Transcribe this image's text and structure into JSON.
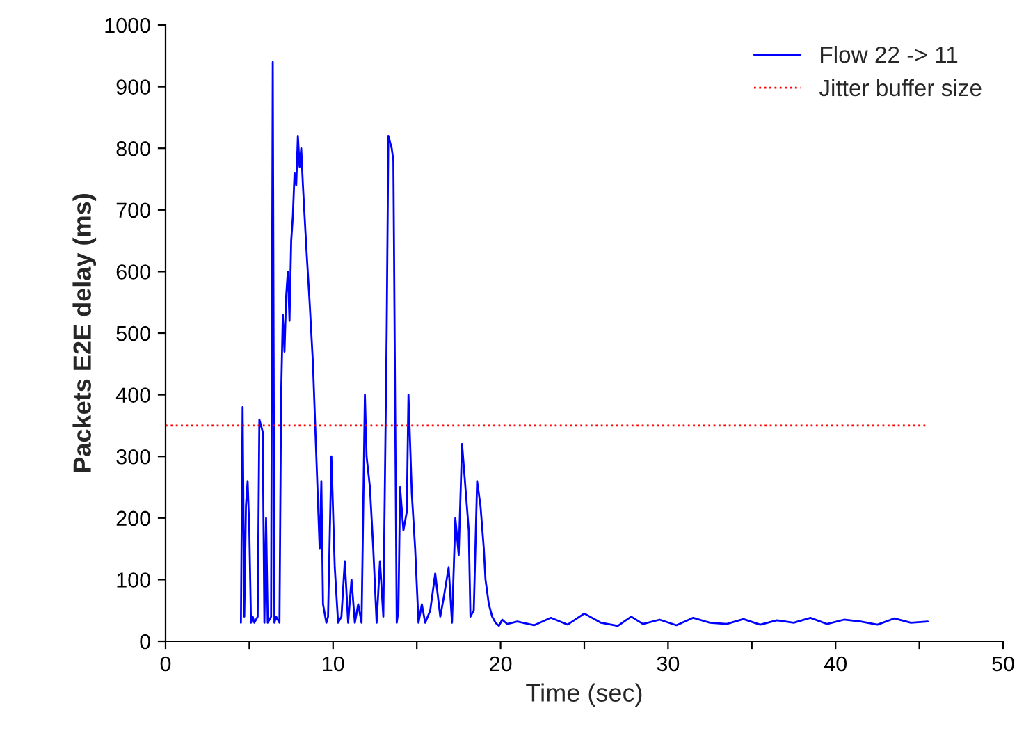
{
  "chart_data": {
    "type": "line",
    "xlabel": "Time (sec)",
    "ylabel": "Packets E2E delay (ms)",
    "xlim": [
      0,
      50
    ],
    "xticks": [
      0,
      {
        "value": 5,
        "label": null
      },
      10,
      {
        "value": 15,
        "label": null
      },
      20,
      {
        "value": 25,
        "label": null
      },
      30,
      {
        "value": 35,
        "label": null
      },
      40,
      {
        "value": 45,
        "label": null
      },
      50
    ],
    "ylim": [
      0,
      1000
    ],
    "yticks": [
      0,
      100,
      200,
      300,
      400,
      500,
      600,
      700,
      800,
      900,
      1000
    ],
    "grid": false,
    "legend": "top right",
    "marker": "none",
    "line_style": "solid",
    "series": [
      {
        "name": "Flow 22 -> 11",
        "color": "#0000ff",
        "x": [
          4.5,
          4.6,
          4.7,
          4.8,
          4.9,
          5.0,
          5.1,
          5.2,
          5.3,
          5.5,
          5.6,
          5.8,
          5.9,
          6.0,
          6.1,
          6.3,
          6.4,
          6.5,
          6.6,
          6.8,
          6.9,
          7.0,
          7.1,
          7.2,
          7.3,
          7.4,
          7.5,
          7.6,
          7.7,
          7.8,
          7.9,
          8.0,
          8.1,
          8.2,
          8.4,
          8.6,
          8.8,
          9.0,
          9.2,
          9.3,
          9.4,
          9.6,
          9.7,
          9.9,
          10.1,
          10.3,
          10.5,
          10.7,
          10.9,
          11.1,
          11.3,
          11.5,
          11.7,
          11.9,
          12.0,
          12.2,
          12.4,
          12.6,
          12.8,
          13.0,
          13.2,
          13.3,
          13.5,
          13.6,
          13.8,
          13.9,
          14.0,
          14.2,
          14.4,
          14.5,
          14.7,
          14.9,
          15.1,
          15.3,
          15.5,
          15.8,
          16.1,
          16.4,
          16.6,
          16.9,
          17.1,
          17.3,
          17.5,
          17.7,
          17.9,
          18.1,
          18.2,
          18.4,
          18.6,
          18.8,
          19.0,
          19.1,
          19.3,
          19.5,
          19.7,
          19.9,
          20.1,
          20.4,
          21.0,
          22.0,
          23.0,
          24.0,
          25.0,
          26.0,
          27.0,
          27.8,
          28.5,
          29.5,
          30.5,
          31.5,
          32.5,
          33.5,
          34.5,
          35.5,
          36.5,
          37.5,
          38.5,
          39.5,
          40.5,
          41.5,
          42.5,
          43.5,
          44.5,
          45.5
        ],
        "values": [
          30,
          380,
          40,
          220,
          260,
          180,
          30,
          40,
          30,
          40,
          360,
          340,
          30,
          200,
          30,
          40,
          940,
          30,
          40,
          30,
          400,
          530,
          470,
          560,
          600,
          520,
          650,
          690,
          760,
          740,
          820,
          770,
          800,
          740,
          640,
          550,
          450,
          300,
          150,
          260,
          60,
          30,
          40,
          300,
          120,
          30,
          40,
          130,
          30,
          100,
          30,
          60,
          30,
          400,
          300,
          250,
          150,
          30,
          130,
          40,
          500,
          820,
          800,
          780,
          30,
          50,
          250,
          180,
          210,
          400,
          240,
          150,
          30,
          60,
          30,
          50,
          110,
          40,
          70,
          120,
          30,
          200,
          140,
          320,
          250,
          180,
          40,
          50,
          260,
          220,
          150,
          100,
          60,
          40,
          30,
          25,
          35,
          28,
          32,
          26,
          38,
          27,
          45,
          30,
          25,
          40,
          28,
          35,
          26,
          38,
          30,
          28,
          36,
          27,
          34,
          30,
          38,
          28,
          35,
          32,
          27,
          37,
          30,
          32
        ]
      }
    ],
    "ref_lines": [
      {
        "axis": "y",
        "value": 350,
        "label": "Jitter buffer size",
        "color": "#ff0000",
        "line_style": "dotted"
      }
    ]
  }
}
